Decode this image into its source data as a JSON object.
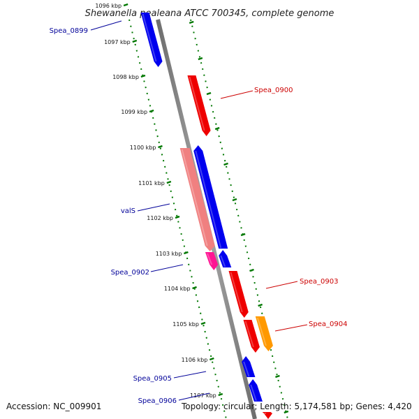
{
  "title": "Shewanella pealeana ATCC 700345, complete genome",
  "ticks": [
    "1096 kbp",
    "1097 kbp",
    "1098 kbp",
    "1099 kbp",
    "1100 kbp",
    "1101 kbp",
    "1102 kbp",
    "1103 kbp",
    "1104 kbp",
    "1105 kbp",
    "1106 kbp",
    "1107 kbp"
  ],
  "genes": {
    "spea_0899": {
      "label": "Spea_0899",
      "strand": "reverse"
    },
    "spea_0900": {
      "label": "Spea_0900",
      "strand": "forward"
    },
    "vals": {
      "label": "valS",
      "strand": "reverse"
    },
    "spea_0902": {
      "label": "Spea_0902",
      "strand": "reverse"
    },
    "spea_0903": {
      "label": "Spea_0903",
      "strand": "forward"
    },
    "spea_0904": {
      "label": "Spea_0904",
      "strand": "forward"
    },
    "spea_0905": {
      "label": "Spea_0905",
      "strand": "reverse"
    },
    "spea_0906": {
      "label": "Spea_0906",
      "strand": "reverse"
    }
  },
  "colors": {
    "forward": "#ee0000",
    "reverse": "#0000ee",
    "rna_pink": "#f08080",
    "magenta": "#ff1493",
    "orange": "#ff9900",
    "backbone": "#888888",
    "ticks": "#007700"
  },
  "footer": {
    "accession": "Accession: NC_009901",
    "topology": "Topology: circular; Length: 5,174,581 bp; Genes: 4,420"
  }
}
